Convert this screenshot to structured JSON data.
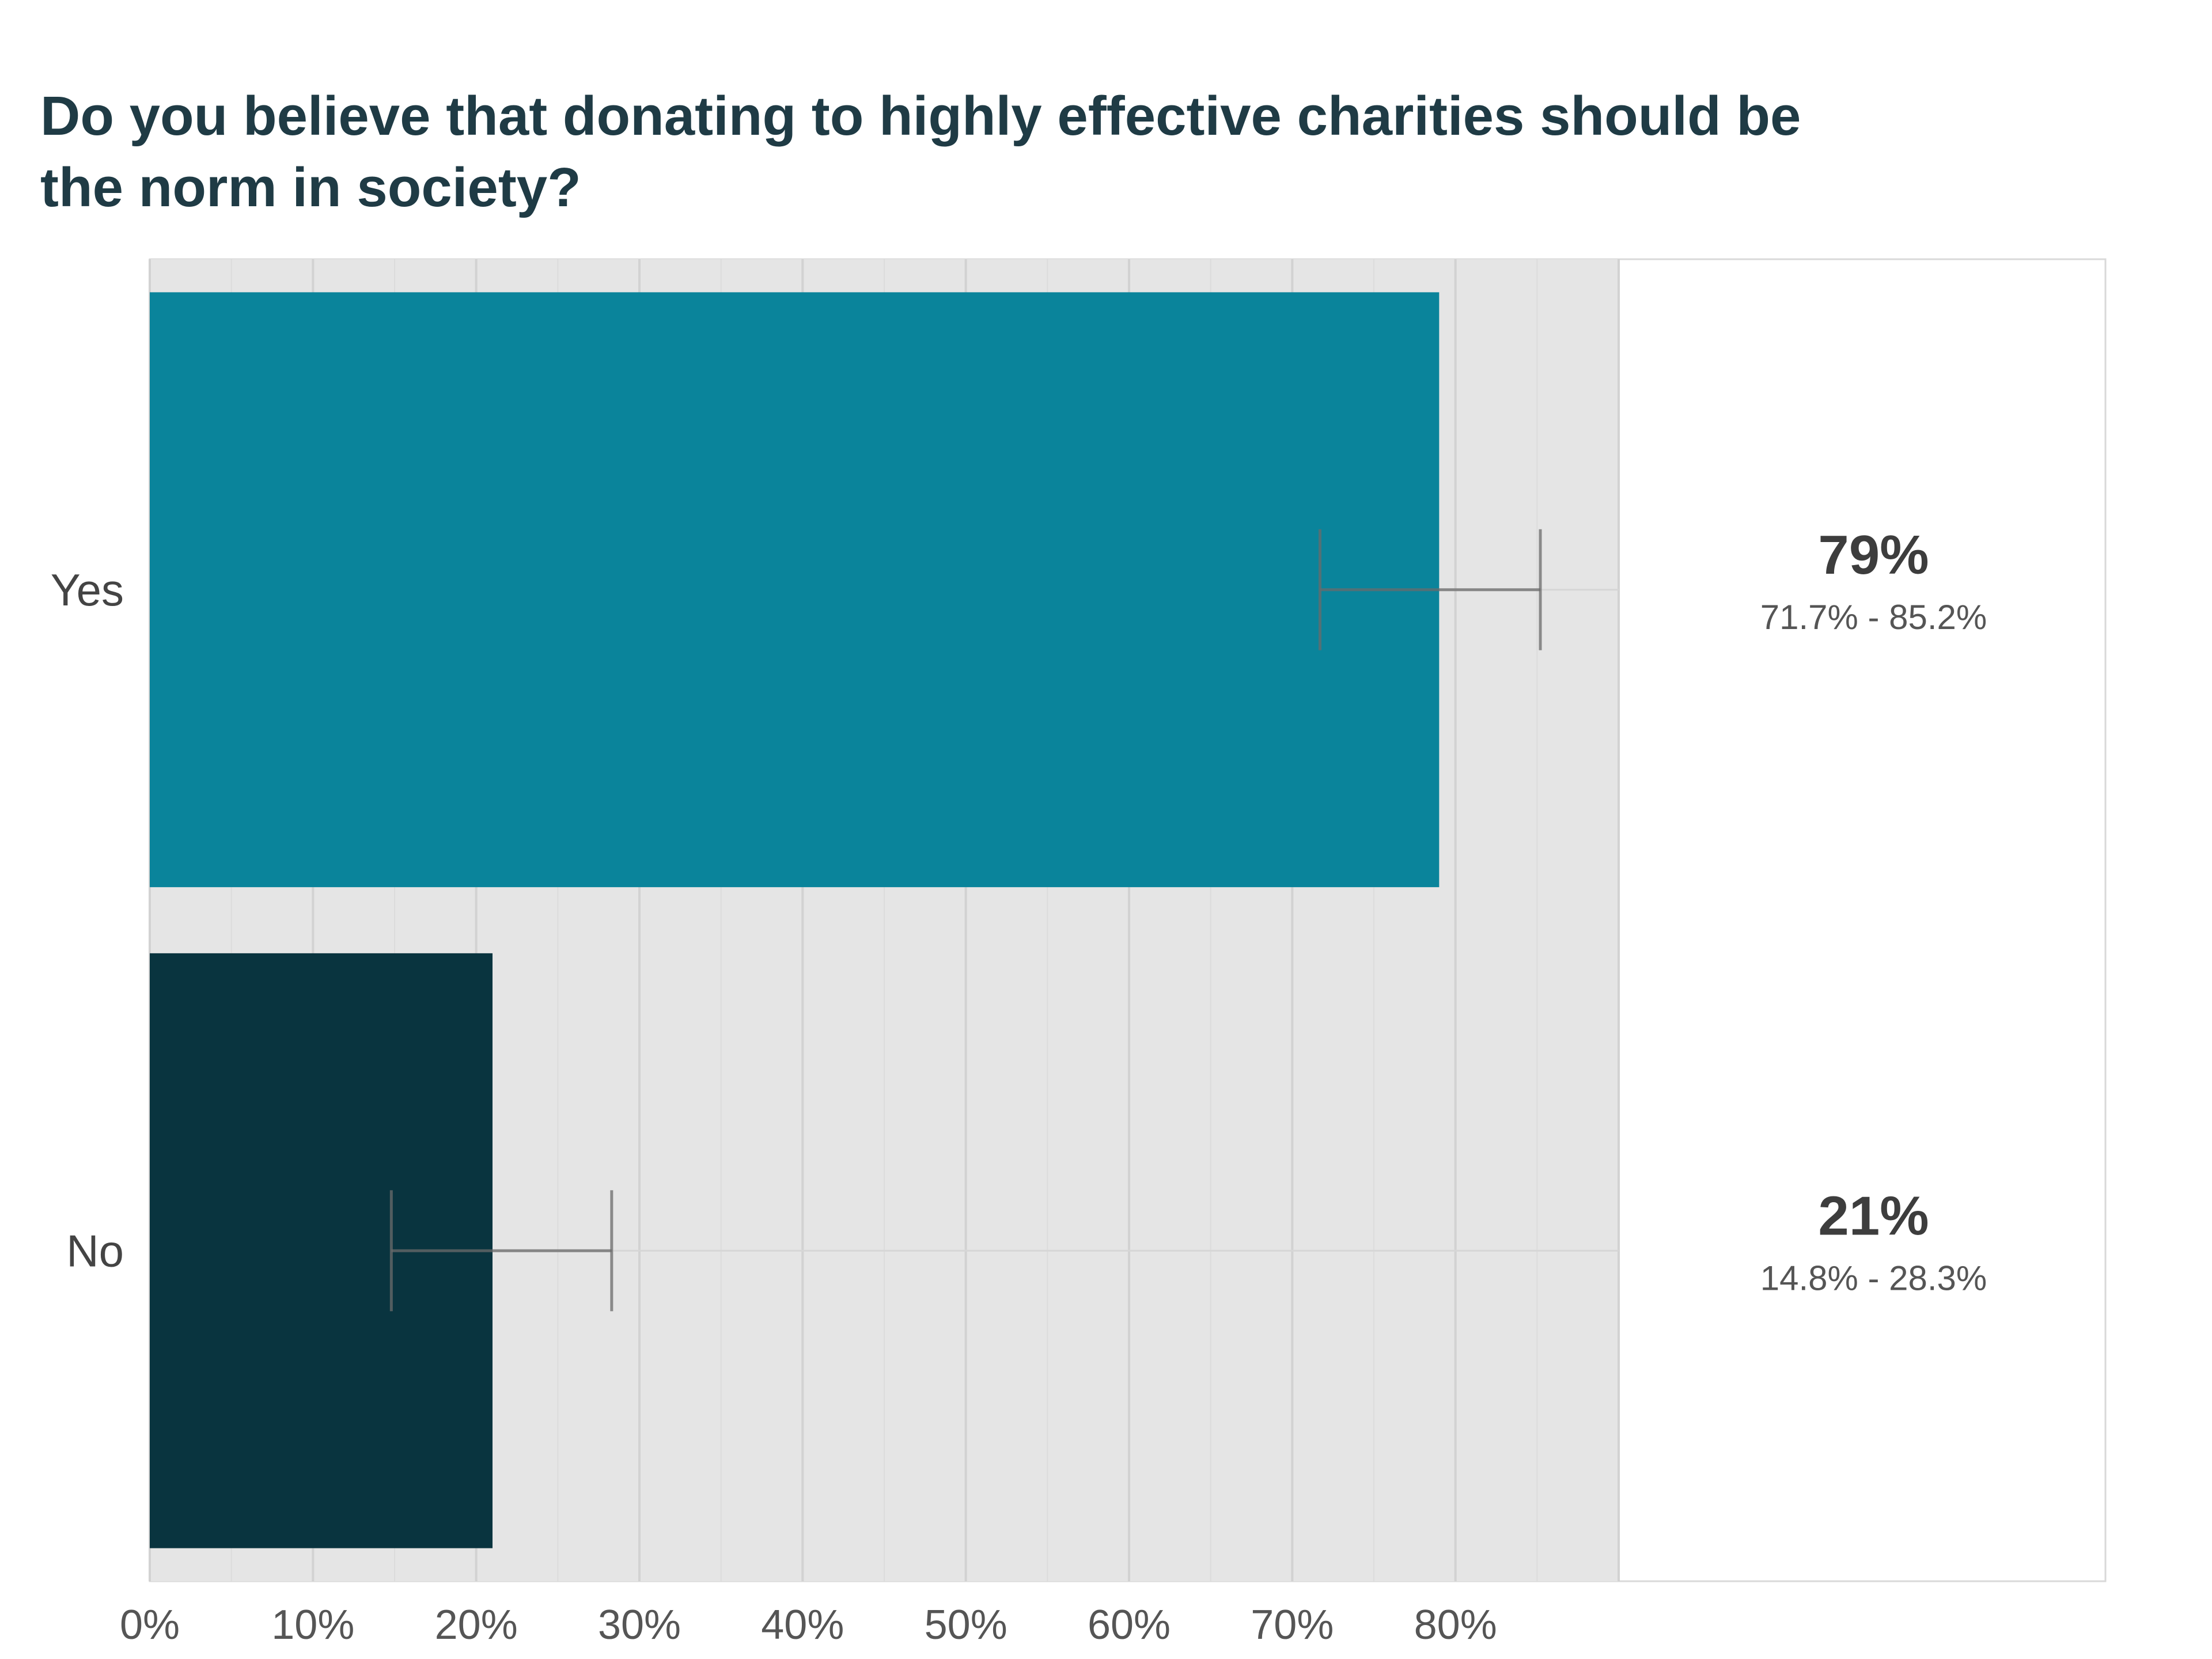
{
  "title_line1": "Do you believe that donating to highly effective charities should be",
  "title_line2": "the norm in society?",
  "colors": {
    "panel": "#e5e5e5",
    "grid": "#cfcfcf",
    "yes": "#0a849b",
    "no": "#09343f",
    "errorbar": "#6b6b6b",
    "frame": "#d9d9d9"
  },
  "chart_data": {
    "type": "bar",
    "orientation": "horizontal",
    "title": "Do you believe that donating to highly effective charities should be the norm in society?",
    "categories": [
      "Yes",
      "No"
    ],
    "values": [
      79,
      21
    ],
    "ci_low": [
      71.7,
      14.8
    ],
    "ci_high": [
      85.2,
      28.3
    ],
    "value_labels": [
      "79%",
      "21%"
    ],
    "ci_labels": [
      "71.7% - 85.2%",
      "14.8% - 28.3%"
    ],
    "xlim": [
      0,
      90
    ],
    "xticks": [
      0,
      10,
      20,
      30,
      40,
      50,
      60,
      70,
      80
    ],
    "xtick_labels": [
      "0%",
      "10%",
      "20%",
      "30%",
      "40%",
      "50%",
      "60%",
      "70%",
      "80%"
    ],
    "xlabel": "",
    "ylabel": "",
    "grid": true
  }
}
